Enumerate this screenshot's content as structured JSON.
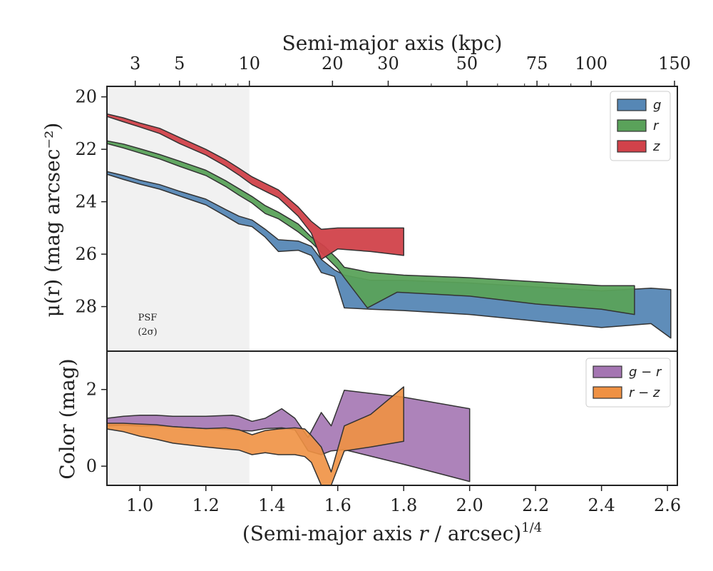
{
  "chart_data": [
    {
      "type": "area",
      "panel": "surface-brightness",
      "ylabel": "μ(r) (mag arcsec⁻²)",
      "top_xlabel": "Semi-major axis (kpc)",
      "xlim": [
        0.9,
        2.63
      ],
      "ylim": [
        29.7,
        19.6
      ],
      "y_inverted": true,
      "yticks": [
        20,
        22,
        24,
        26,
        28
      ],
      "top_ticks": [
        "3",
        "5",
        "10",
        "20",
        "30",
        "50",
        "75",
        "100",
        "150"
      ],
      "shaded_region_x": [
        0.9,
        1.332
      ],
      "psf_label": [
        "PSF",
        "(2σ)"
      ],
      "legend_placement": "top-right",
      "series": [
        {
          "name": "g",
          "color": "#5687b5",
          "upper": [
            [
              0.9,
              22.85
            ],
            [
              0.95,
              23.0
            ],
            [
              1.0,
              23.18
            ],
            [
              1.06,
              23.35
            ],
            [
              1.12,
              23.6
            ],
            [
              1.2,
              23.9
            ],
            [
              1.26,
              24.3
            ],
            [
              1.3,
              24.55
            ],
            [
              1.34,
              24.7
            ],
            [
              1.38,
              25.05
            ],
            [
              1.42,
              25.45
            ],
            [
              1.48,
              25.5
            ],
            [
              1.52,
              25.7
            ],
            [
              1.55,
              26.2
            ],
            [
              1.59,
              26.6
            ],
            [
              1.62,
              26.8
            ],
            [
              1.7,
              27.0
            ],
            [
              1.8,
              27.0
            ],
            [
              2.0,
              27.1
            ],
            [
              2.2,
              27.25
            ],
            [
              2.4,
              27.4
            ],
            [
              2.55,
              27.3
            ],
            [
              2.61,
              27.35
            ]
          ],
          "lower": [
            [
              0.9,
              22.95
            ],
            [
              0.95,
              23.15
            ],
            [
              1.0,
              23.33
            ],
            [
              1.06,
              23.52
            ],
            [
              1.12,
              23.78
            ],
            [
              1.2,
              24.12
            ],
            [
              1.26,
              24.55
            ],
            [
              1.3,
              24.85
            ],
            [
              1.34,
              24.95
            ],
            [
              1.38,
              25.35
            ],
            [
              1.42,
              25.9
            ],
            [
              1.48,
              25.85
            ],
            [
              1.52,
              26.05
            ],
            [
              1.55,
              26.7
            ],
            [
              1.59,
              26.85
            ],
            [
              1.62,
              28.05
            ],
            [
              1.7,
              28.1
            ],
            [
              1.8,
              28.15
            ],
            [
              2.0,
              28.3
            ],
            [
              2.2,
              28.55
            ],
            [
              2.4,
              28.8
            ],
            [
              2.55,
              28.65
            ],
            [
              2.61,
              29.2
            ]
          ]
        },
        {
          "name": "r",
          "color": "#5aa25a",
          "upper": [
            [
              0.9,
              21.68
            ],
            [
              0.95,
              21.8
            ],
            [
              1.0,
              21.98
            ],
            [
              1.06,
              22.2
            ],
            [
              1.12,
              22.45
            ],
            [
              1.2,
              22.8
            ],
            [
              1.26,
              23.2
            ],
            [
              1.3,
              23.5
            ],
            [
              1.34,
              23.8
            ],
            [
              1.38,
              24.15
            ],
            [
              1.42,
              24.4
            ],
            [
              1.48,
              24.85
            ],
            [
              1.52,
              25.35
            ],
            [
              1.56,
              25.7
            ],
            [
              1.6,
              26.2
            ],
            [
              1.62,
              26.5
            ],
            [
              1.7,
              26.7
            ],
            [
              1.8,
              26.8
            ],
            [
              2.0,
              26.9
            ],
            [
              2.2,
              27.05
            ],
            [
              2.4,
              27.2
            ],
            [
              2.5,
              27.2
            ]
          ],
          "lower": [
            [
              0.9,
              21.78
            ],
            [
              0.95,
              21.95
            ],
            [
              1.0,
              22.14
            ],
            [
              1.06,
              22.37
            ],
            [
              1.12,
              22.65
            ],
            [
              1.2,
              23.0
            ],
            [
              1.26,
              23.42
            ],
            [
              1.3,
              23.75
            ],
            [
              1.34,
              24.05
            ],
            [
              1.38,
              24.45
            ],
            [
              1.42,
              24.65
            ],
            [
              1.48,
              25.15
            ],
            [
              1.52,
              25.55
            ],
            [
              1.56,
              26.05
            ],
            [
              1.6,
              26.55
            ],
            [
              1.62,
              26.9
            ],
            [
              1.69,
              28.05
            ],
            [
              1.78,
              27.45
            ],
            [
              2.0,
              27.6
            ],
            [
              2.2,
              27.9
            ],
            [
              2.4,
              28.1
            ],
            [
              2.5,
              28.3
            ]
          ]
        },
        {
          "name": "z",
          "color": "#d1424a",
          "upper": [
            [
              0.9,
              20.65
            ],
            [
              0.95,
              20.8
            ],
            [
              1.0,
              21.0
            ],
            [
              1.06,
              21.2
            ],
            [
              1.12,
              21.55
            ],
            [
              1.2,
              22.0
            ],
            [
              1.26,
              22.4
            ],
            [
              1.3,
              22.72
            ],
            [
              1.34,
              23.05
            ],
            [
              1.38,
              23.3
            ],
            [
              1.42,
              23.55
            ],
            [
              1.48,
              24.2
            ],
            [
              1.52,
              24.75
            ],
            [
              1.55,
              25.05
            ],
            [
              1.6,
              25.0
            ],
            [
              1.7,
              25.0
            ],
            [
              1.8,
              25.0
            ]
          ],
          "lower": [
            [
              0.9,
              20.75
            ],
            [
              0.95,
              20.95
            ],
            [
              1.0,
              21.15
            ],
            [
              1.06,
              21.4
            ],
            [
              1.12,
              21.78
            ],
            [
              1.2,
              22.22
            ],
            [
              1.26,
              22.65
            ],
            [
              1.3,
              22.98
            ],
            [
              1.34,
              23.35
            ],
            [
              1.38,
              23.6
            ],
            [
              1.42,
              23.85
            ],
            [
              1.48,
              24.55
            ],
            [
              1.52,
              25.2
            ],
            [
              1.55,
              26.2
            ],
            [
              1.6,
              25.8
            ],
            [
              1.7,
              25.9
            ],
            [
              1.8,
              26.05
            ]
          ]
        }
      ]
    },
    {
      "type": "area",
      "panel": "color",
      "ylabel": "Color (mag)",
      "xlabel": "(Semi-major axis r / arcsec)^1/4",
      "xlim": [
        0.9,
        2.63
      ],
      "ylim": [
        -0.5,
        3.0
      ],
      "yticks": [
        0,
        2
      ],
      "xticks": [
        1.0,
        1.2,
        1.4,
        1.6,
        1.8,
        2.0,
        2.2,
        2.4,
        2.6
      ],
      "shaded_region_x": [
        0.9,
        1.332
      ],
      "legend_placement": "top-right",
      "series": [
        {
          "name": "g − r",
          "color": "#a475b2",
          "upper": [
            [
              0.9,
              1.25
            ],
            [
              0.95,
              1.3
            ],
            [
              1.0,
              1.33
            ],
            [
              1.05,
              1.33
            ],
            [
              1.1,
              1.3
            ],
            [
              1.2,
              1.3
            ],
            [
              1.28,
              1.33
            ],
            [
              1.3,
              1.3
            ],
            [
              1.34,
              1.17
            ],
            [
              1.38,
              1.25
            ],
            [
              1.43,
              1.5
            ],
            [
              1.47,
              1.25
            ],
            [
              1.51,
              0.75
            ],
            [
              1.55,
              1.4
            ],
            [
              1.58,
              1.05
            ],
            [
              1.62,
              1.98
            ],
            [
              1.8,
              1.8
            ],
            [
              2.0,
              1.5
            ]
          ],
          "lower": [
            [
              0.9,
              1.05
            ],
            [
              0.95,
              1.07
            ],
            [
              1.0,
              1.05
            ],
            [
              1.05,
              1.05
            ],
            [
              1.1,
              1.03
            ],
            [
              1.2,
              0.98
            ],
            [
              1.28,
              0.95
            ],
            [
              1.3,
              0.93
            ],
            [
              1.34,
              0.92
            ],
            [
              1.38,
              0.98
            ],
            [
              1.43,
              1.0
            ],
            [
              1.47,
              0.95
            ],
            [
              1.51,
              0.4
            ],
            [
              1.55,
              0.3
            ],
            [
              1.58,
              0.4
            ],
            [
              1.62,
              0.43
            ],
            [
              1.8,
              0.05
            ],
            [
              2.0,
              -0.4
            ]
          ]
        },
        {
          "name": "r − z",
          "color": "#ef9143",
          "upper": [
            [
              0.9,
              1.12
            ],
            [
              0.95,
              1.12
            ],
            [
              1.0,
              1.1
            ],
            [
              1.05,
              1.08
            ],
            [
              1.1,
              1.03
            ],
            [
              1.2,
              0.98
            ],
            [
              1.26,
              1.0
            ],
            [
              1.3,
              0.95
            ],
            [
              1.34,
              0.82
            ],
            [
              1.38,
              0.93
            ],
            [
              1.42,
              0.97
            ],
            [
              1.47,
              1.0
            ],
            [
              1.5,
              0.97
            ],
            [
              1.52,
              0.8
            ],
            [
              1.55,
              0.5
            ],
            [
              1.58,
              -0.15
            ],
            [
              1.62,
              1.05
            ],
            [
              1.7,
              1.35
            ],
            [
              1.8,
              2.07
            ]
          ],
          "lower": [
            [
              0.9,
              0.97
            ],
            [
              0.95,
              0.9
            ],
            [
              1.0,
              0.78
            ],
            [
              1.05,
              0.7
            ],
            [
              1.1,
              0.6
            ],
            [
              1.2,
              0.5
            ],
            [
              1.26,
              0.45
            ],
            [
              1.3,
              0.42
            ],
            [
              1.34,
              0.3
            ],
            [
              1.38,
              0.35
            ],
            [
              1.42,
              0.3
            ],
            [
              1.47,
              0.3
            ],
            [
              1.5,
              0.25
            ],
            [
              1.52,
              0.1
            ],
            [
              1.55,
              -0.5
            ],
            [
              1.58,
              -0.5
            ],
            [
              1.62,
              0.4
            ],
            [
              1.7,
              0.5
            ],
            [
              1.8,
              0.65
            ]
          ]
        }
      ]
    }
  ]
}
